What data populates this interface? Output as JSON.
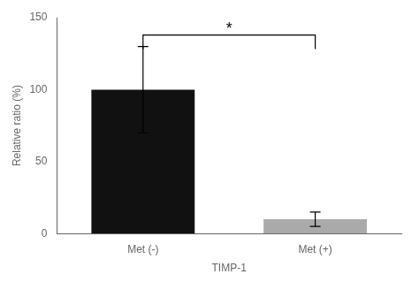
{
  "chart_data": {
    "type": "bar",
    "categories": [
      "Met (-)",
      "Met (+)"
    ],
    "values": [
      100,
      10
    ],
    "errors": [
      30,
      5
    ],
    "colors": [
      "#111111",
      "#aaaaaa"
    ],
    "xlabel": "TIMP-1",
    "ylabel": "Relative ratio (%)",
    "ylim": [
      0,
      150
    ],
    "yticks": [
      0,
      50,
      100,
      150
    ],
    "grid": false,
    "annotations": [
      {
        "text": "*",
        "y": 138,
        "from": "Met (-)",
        "to": "Met (+)"
      }
    ]
  }
}
